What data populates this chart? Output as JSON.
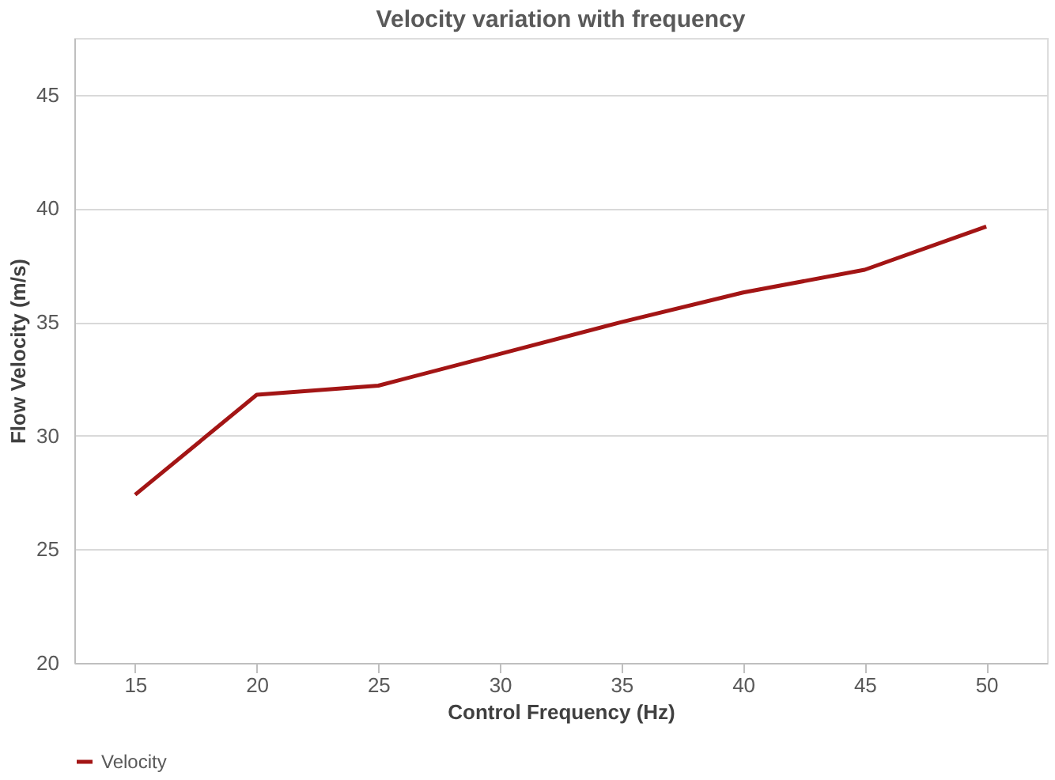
{
  "chart_data": {
    "type": "line",
    "title": "Velocity variation with frequency",
    "xlabel": "Control Frequency (Hz)",
    "ylabel": "Flow Velocity (m/s)",
    "categories": [
      "15",
      "20",
      "25",
      "30",
      "35",
      "40",
      "45",
      "50"
    ],
    "series": [
      {
        "name": "Velocity",
        "color": "#a31515",
        "values": [
          27.4,
          31.8,
          32.2,
          33.6,
          35.0,
          36.3,
          37.3,
          39.2
        ]
      }
    ],
    "ylim": [
      20,
      47.5
    ],
    "yticks": [
      20,
      25,
      30,
      35,
      40,
      45
    ],
    "grid": "y",
    "legend": "bottom",
    "marker": "none",
    "line_style": "solid"
  }
}
